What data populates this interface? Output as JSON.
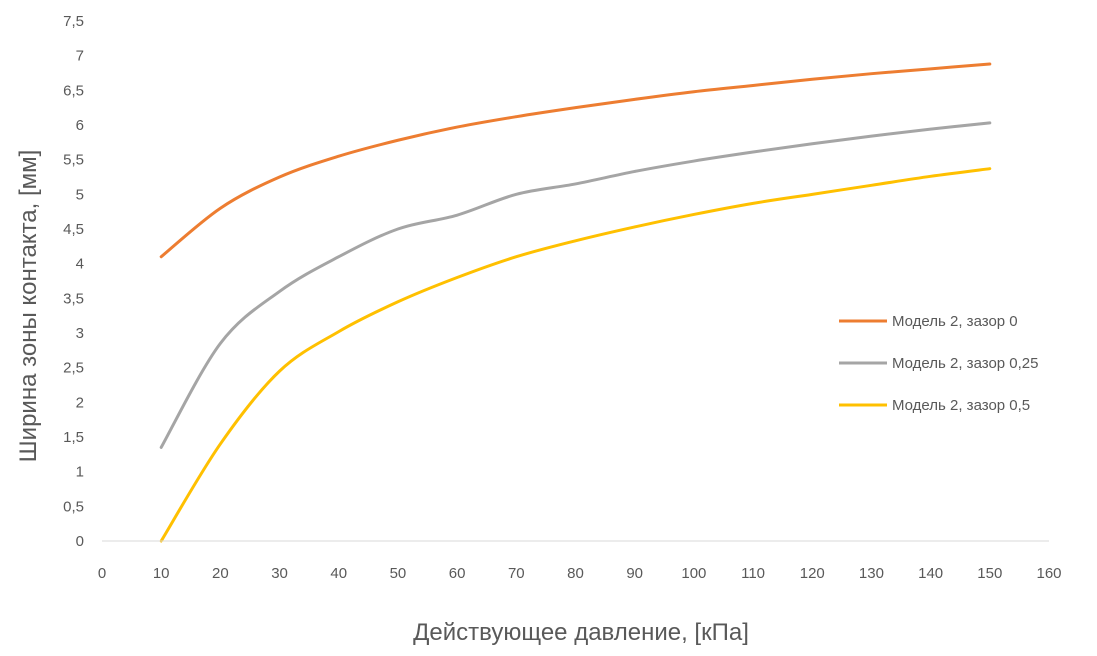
{
  "chart_data": {
    "type": "line",
    "title": "",
    "xlabel": "Действующее давление, [кПа]",
    "ylabel": "Ширина зоны контакта, [мм]",
    "xlim": [
      0,
      160
    ],
    "ylim": [
      0,
      7.5
    ],
    "x_ticks": [
      "0",
      "10",
      "20",
      "30",
      "40",
      "50",
      "60",
      "70",
      "80",
      "90",
      "100",
      "110",
      "120",
      "130",
      "140",
      "150",
      "160"
    ],
    "y_ticks": [
      "0",
      "0,5",
      "1",
      "1,5",
      "2",
      "2,5",
      "3",
      "3,5",
      "4",
      "4,5",
      "5",
      "5,5",
      "6",
      "6,5",
      "7",
      "7,5"
    ],
    "grid": false,
    "legend_position": "right",
    "series": [
      {
        "name": "Модель 2, зазор 0",
        "color": "#ED7D31",
        "x": [
          10,
          20,
          30,
          40,
          50,
          60,
          70,
          80,
          90,
          100,
          110,
          120,
          130,
          140,
          150
        ],
        "y": [
          4.1,
          4.8,
          5.25,
          5.55,
          5.78,
          5.97,
          6.12,
          6.25,
          6.37,
          6.48,
          6.57,
          6.66,
          6.74,
          6.81,
          6.88
        ]
      },
      {
        "name": "Модель 2, зазор 0,25",
        "color": "#A5A5A5",
        "x": [
          10,
          20,
          30,
          40,
          50,
          60,
          70,
          80,
          90,
          100,
          110,
          120,
          130,
          140,
          150
        ],
        "y": [
          1.35,
          2.85,
          3.6,
          4.1,
          4.5,
          4.7,
          5.0,
          5.15,
          5.33,
          5.48,
          5.61,
          5.73,
          5.84,
          5.94,
          6.03
        ]
      },
      {
        "name": "Модель 2, зазор 0,5",
        "color": "#FFC000",
        "x": [
          10,
          20,
          30,
          40,
          50,
          60,
          70,
          80,
          90,
          100,
          110,
          120,
          130,
          140,
          150
        ],
        "y": [
          0,
          1.4,
          2.45,
          3.02,
          3.45,
          3.8,
          4.1,
          4.33,
          4.53,
          4.71,
          4.87,
          5.0,
          5.13,
          5.26,
          5.37
        ]
      }
    ]
  }
}
